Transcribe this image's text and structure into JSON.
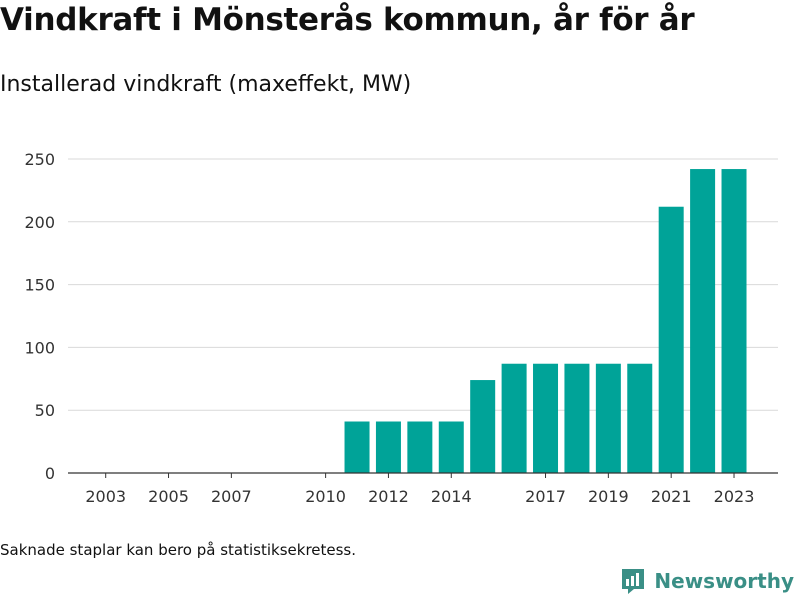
{
  "title": "Vindkraft i Mönsterås kommun, år för år",
  "subtitle": "Installerad vindkraft (maxeffekt, MW)",
  "footnote": "Saknade staplar kan bero på statistiksekretess.",
  "brand": {
    "name": "Newsworthy",
    "icon": "newsworthy-logo-icon",
    "color": "#3a8f86"
  },
  "chart_data": {
    "type": "bar",
    "x": [
      2011,
      2012,
      2013,
      2014,
      2015,
      2016,
      2017,
      2018,
      2019,
      2020,
      2021,
      2022,
      2023
    ],
    "values": [
      41,
      41,
      41,
      41,
      74,
      87,
      87,
      87,
      87,
      87,
      212,
      242,
      242
    ],
    "xlim": [
      2001.8,
      2024.4
    ],
    "ylim": [
      0,
      250
    ],
    "yticks": [
      0,
      50,
      100,
      150,
      200,
      250
    ],
    "xticks": [
      2003,
      2005,
      2007,
      2010,
      2012,
      2014,
      2017,
      2019,
      2021,
      2023
    ],
    "bar_color": "#00a398",
    "grid": true
  }
}
